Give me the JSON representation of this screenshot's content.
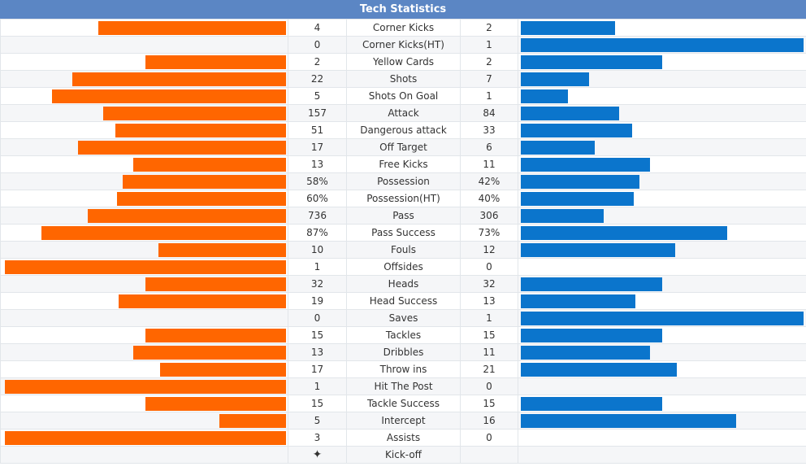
{
  "title": "Tech Statistics",
  "colors": {
    "home_bar": "#ff6600",
    "away_bar": "#0b75cc",
    "header_bg": "#5b86c4"
  },
  "stats": [
    {
      "name": "Corner Kicks",
      "home": "4",
      "away": "2",
      "home_share": 0.667,
      "away_share": 0.333
    },
    {
      "name": "Corner Kicks(HT)",
      "home": "0",
      "away": "1",
      "home_share": 0.0,
      "away_share": 1.0
    },
    {
      "name": "Yellow Cards",
      "home": "2",
      "away": "2",
      "home_share": 0.5,
      "away_share": 0.5
    },
    {
      "name": "Shots",
      "home": "22",
      "away": "7",
      "home_share": 0.759,
      "away_share": 0.241
    },
    {
      "name": "Shots On Goal",
      "home": "5",
      "away": "1",
      "home_share": 0.833,
      "away_share": 0.167
    },
    {
      "name": "Attack",
      "home": "157",
      "away": "84",
      "home_share": 0.651,
      "away_share": 0.349
    },
    {
      "name": "Dangerous attack",
      "home": "51",
      "away": "33",
      "home_share": 0.607,
      "away_share": 0.393
    },
    {
      "name": "Off Target",
      "home": "17",
      "away": "6",
      "home_share": 0.739,
      "away_share": 0.261
    },
    {
      "name": "Free Kicks",
      "home": "13",
      "away": "11",
      "home_share": 0.542,
      "away_share": 0.458
    },
    {
      "name": "Possession",
      "home": "58%",
      "away": "42%",
      "home_share": 0.58,
      "away_share": 0.42
    },
    {
      "name": "Possession(HT)",
      "home": "60%",
      "away": "40%",
      "home_share": 0.6,
      "away_share": 0.4
    },
    {
      "name": "Pass",
      "home": "736",
      "away": "306",
      "home_share": 0.706,
      "away_share": 0.294
    },
    {
      "name": "Pass Success",
      "home": "87%",
      "away": "73%",
      "home_share": 0.87,
      "away_share": 0.73
    },
    {
      "name": "Fouls",
      "home": "10",
      "away": "12",
      "home_share": 0.455,
      "away_share": 0.545
    },
    {
      "name": "Offsides",
      "home": "1",
      "away": "0",
      "home_share": 1.0,
      "away_share": 0.0
    },
    {
      "name": "Heads",
      "home": "32",
      "away": "32",
      "home_share": 0.5,
      "away_share": 0.5
    },
    {
      "name": "Head Success",
      "home": "19",
      "away": "13",
      "home_share": 0.594,
      "away_share": 0.406
    },
    {
      "name": "Saves",
      "home": "0",
      "away": "1",
      "home_share": 0.0,
      "away_share": 1.0
    },
    {
      "name": "Tackles",
      "home": "15",
      "away": "15",
      "home_share": 0.5,
      "away_share": 0.5
    },
    {
      "name": "Dribbles",
      "home": "13",
      "away": "11",
      "home_share": 0.542,
      "away_share": 0.458
    },
    {
      "name": "Throw ins",
      "home": "17",
      "away": "21",
      "home_share": 0.447,
      "away_share": 0.553
    },
    {
      "name": "Hit The Post",
      "home": "1",
      "away": "0",
      "home_share": 1.0,
      "away_share": 0.0
    },
    {
      "name": "Tackle Success",
      "home": "15",
      "away": "15",
      "home_share": 0.5,
      "away_share": 0.5
    },
    {
      "name": "Intercept",
      "home": "5",
      "away": "16",
      "home_share": 0.238,
      "away_share": 0.762
    },
    {
      "name": "Assists",
      "home": "3",
      "away": "0",
      "home_share": 1.0,
      "away_share": 0.0
    }
  ],
  "kickoff": {
    "name": "Kick-off",
    "home_icon": "kickoff-ball-icon",
    "away": ""
  }
}
